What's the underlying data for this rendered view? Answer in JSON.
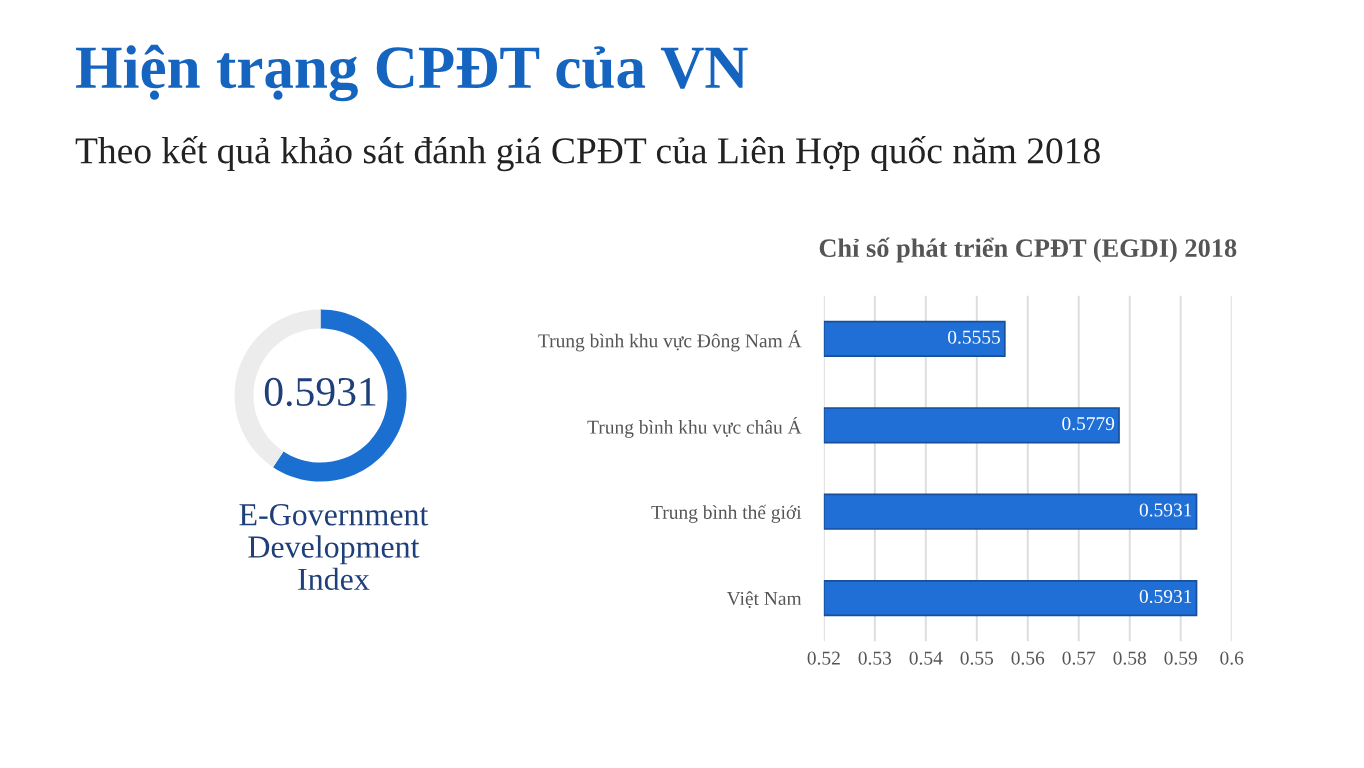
{
  "chart_data": [
    {
      "type": "donut",
      "title": "Hiện trạng CPĐT của VN",
      "subtitle": "Theo kết quả khảo sát đánh giá CPĐT của Liên Hợp quốc năm 2018",
      "categories": [
        null,
        null
      ],
      "values": [
        59.31,
        40.69
      ],
      "colors": [
        "#1a6fd0",
        "#ececec"
      ],
      "annotations": [
        "0.5931",
        "E-Government\nDevelopment\nIndex"
      ]
    },
    {
      "type": "bar",
      "orientation": "horizontal",
      "title": "Chỉ số phát triển CPĐT (EGDI) 2018",
      "categories": [
        "Trung bình khu vực Đông Nam Á",
        "Trung bình khu vực châu Á",
        "Trung bình thế giới",
        "Việt Nam"
      ],
      "values": [
        0.5555,
        0.5779,
        0.5931,
        0.5931
      ],
      "value_labels": [
        "0.5555",
        "0.5779",
        "0.5931",
        "0.5931"
      ],
      "color": "#1f6fd6",
      "xlim": [
        0.52,
        0.6
      ],
      "xticks": [
        0.52,
        0.53,
        0.54,
        0.55,
        0.56,
        0.57,
        0.58,
        0.59,
        0.6
      ],
      "grid": "x"
    }
  ]
}
